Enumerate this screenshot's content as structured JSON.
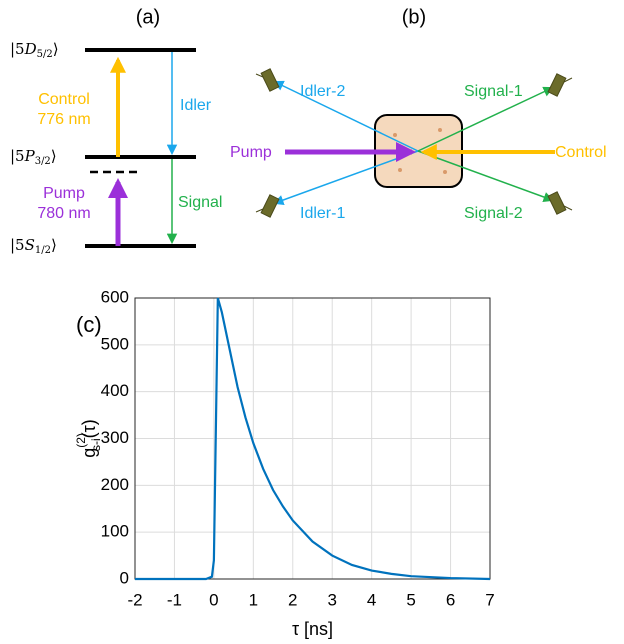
{
  "panel_a": {
    "label": "(a)",
    "levels": [
      {
        "pre": "|5",
        "letter": "D",
        "sub": "5/2",
        "close": "⟩"
      },
      {
        "pre": "|5",
        "letter": "P",
        "sub": "3/2",
        "close": "⟩"
      },
      {
        "pre": "|5",
        "letter": "S",
        "sub": "1/2",
        "close": "⟩"
      }
    ],
    "control": [
      "Control",
      "776 nm"
    ],
    "pump": [
      "Pump",
      "780 nm"
    ],
    "idler": "Idler",
    "signal": "Signal"
  },
  "panel_b": {
    "label": "(b)",
    "pump": "Pump",
    "control": "Control",
    "idler_2": "Idler-2",
    "signal_1": "Signal-1",
    "idler_1": "Idler-1",
    "signal_2": "Signal-2"
  },
  "chart_data": {
    "type": "line",
    "panel_label": "(c)",
    "xlabel": "τ [ns]",
    "ylabel": [
      "g",
      "(2)",
      "s-i",
      "(τ)"
    ],
    "x": [
      -2,
      -0.2,
      -0.05,
      0,
      0.1,
      0.2,
      0.4,
      0.6,
      0.8,
      1,
      1.25,
      1.5,
      1.75,
      2,
      2.5,
      3,
      3.5,
      4,
      4.5,
      5,
      6,
      7
    ],
    "values": [
      0,
      0,
      5,
      40,
      600,
      570,
      490,
      410,
      345,
      290,
      235,
      190,
      155,
      125,
      80,
      50,
      30,
      18,
      11,
      6,
      2,
      0
    ],
    "color": "#0072bd",
    "xlim": [
      -2,
      7
    ],
    "xticks": [
      -2,
      -1,
      0,
      1,
      2,
      3,
      4,
      5,
      6,
      7
    ],
    "ylim": [
      0,
      600
    ],
    "yticks": [
      0,
      100,
      200,
      300,
      400,
      500,
      600
    ],
    "grid": true
  }
}
